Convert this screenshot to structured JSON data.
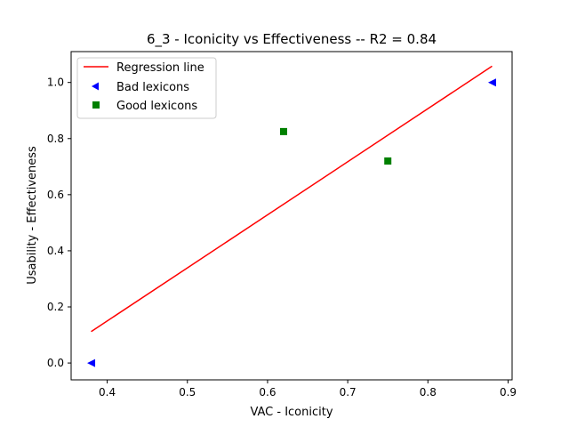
{
  "chart_data": {
    "type": "scatter",
    "title": "6_3 - Iconicity  vs  Effectiveness -- R2 = 0.84",
    "xlabel": "VAC - Iconicity",
    "ylabel": "Usability - Effectiveness",
    "xlim": [
      0.355,
      0.905
    ],
    "ylim": [
      -0.06,
      1.11
    ],
    "xticks": [
      "0.4",
      "0.5",
      "0.6",
      "0.7",
      "0.8",
      "0.9"
    ],
    "yticks": [
      "0.0",
      "0.2",
      "0.4",
      "0.6",
      "0.8",
      "1.0"
    ],
    "grid": false,
    "legend_position": "top-left",
    "regression_line": {
      "name": "Regression line",
      "color": "#ff0000",
      "x": [
        0.38,
        0.88
      ],
      "y": [
        0.112,
        1.058
      ]
    },
    "series": [
      {
        "name": "Bad lexicons",
        "marker": "triangle-left",
        "color": "#0000ff",
        "x": [
          0.38,
          0.88
        ],
        "y": [
          0.0,
          1.0
        ]
      },
      {
        "name": "Good lexicons",
        "marker": "square",
        "color": "#008000",
        "x": [
          0.62,
          0.75
        ],
        "y": [
          0.825,
          0.72
        ]
      }
    ]
  }
}
